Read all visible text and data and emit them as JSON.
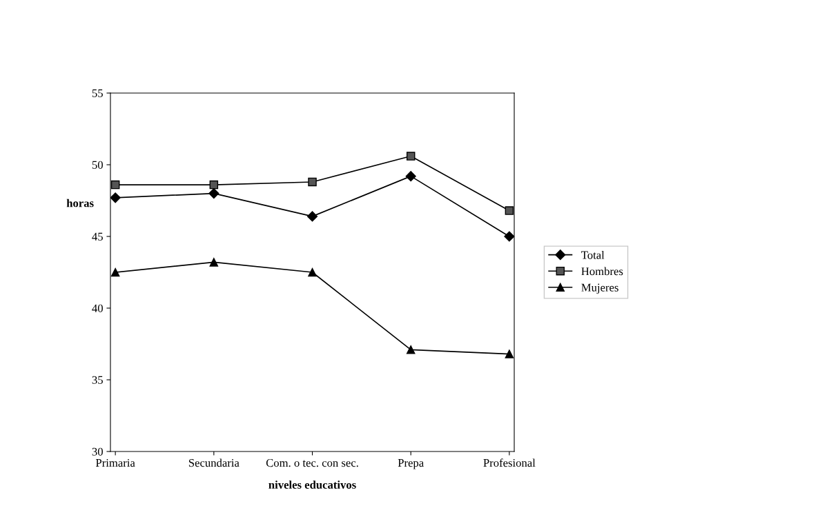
{
  "chart_data": {
    "type": "line",
    "xlabel": "niveles educativos",
    "ylabel": "horas",
    "categories": [
      "Primaria",
      "Secundaria",
      "Com. o tec. con sec.",
      "Prepa",
      "Profesional"
    ],
    "series": [
      {
        "name": "Total",
        "color": "#000000",
        "marker": "diamond",
        "values": [
          47.7,
          48.0,
          46.4,
          49.2,
          45.0
        ]
      },
      {
        "name": "Hombres",
        "color": "#000000",
        "marker": "square",
        "values": [
          48.6,
          48.6,
          48.8,
          50.6,
          46.8
        ]
      },
      {
        "name": "Mujeres",
        "color": "#000000",
        "marker": "triangle",
        "values": [
          42.5,
          43.2,
          42.5,
          37.1,
          36.8
        ]
      }
    ],
    "ylim": [
      30,
      55
    ],
    "yticks": [
      30,
      35,
      40,
      45,
      50,
      55
    ],
    "grid": false,
    "legend": "right",
    "line_style": "solid"
  }
}
